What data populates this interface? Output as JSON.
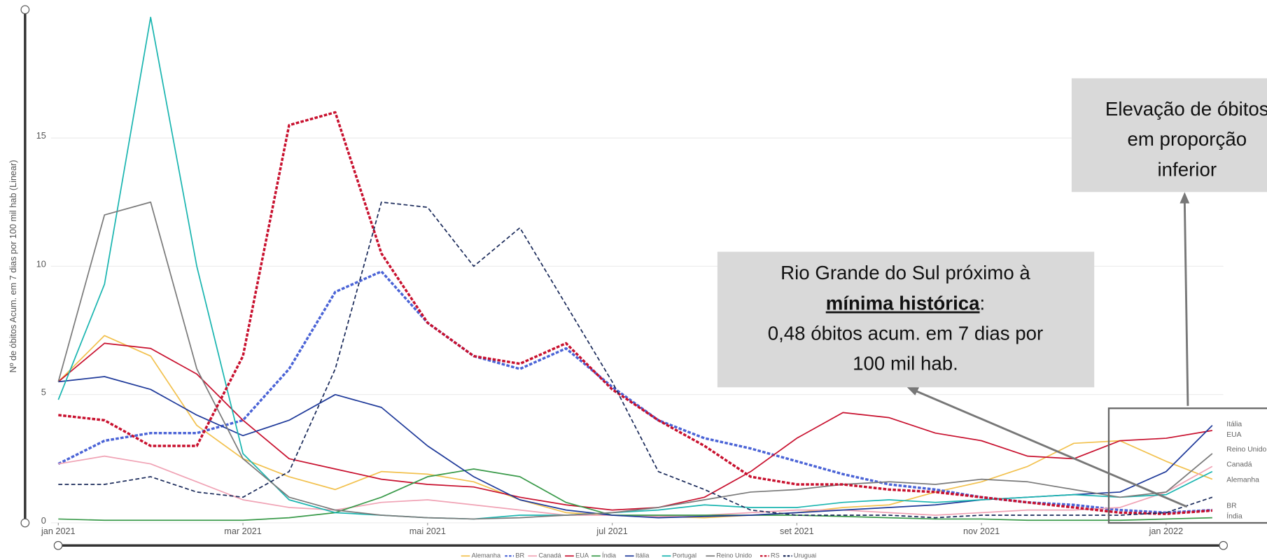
{
  "chart_data": {
    "type": "line",
    "y_label": "Nº de óbitos Acum. em 7 dias por 100 mil hab (Linear)",
    "xlim": [
      -0.36,
      12.62
    ],
    "xticks": [
      {
        "value": 0,
        "label": "jan 2021"
      },
      {
        "value": 2,
        "label": "mar 2021"
      },
      {
        "value": 4,
        "label": "mai 2021"
      },
      {
        "value": 6,
        "label": "jul 2021"
      },
      {
        "value": 8,
        "label": "set 2021"
      },
      {
        "value": 10,
        "label": "nov 2021"
      },
      {
        "value": 12,
        "label": "jan 2022"
      }
    ],
    "ylim": [
      0,
      20
    ],
    "yticks": [
      0,
      5,
      10,
      15
    ],
    "grid": true,
    "legend": "bottom",
    "x": [
      0,
      0.5,
      1,
      1.5,
      2,
      2.5,
      3,
      3.5,
      4,
      4.5,
      5,
      5.5,
      6,
      6.5,
      7,
      7.5,
      8,
      8.5,
      9,
      9.5,
      10,
      10.5,
      11,
      11.5,
      12,
      12.5
    ],
    "series": [
      {
        "name": "Alemanha",
        "color": "#f2c14e",
        "dashed": false,
        "width": 1.5,
        "values": [
          5.5,
          7.3,
          6.5,
          3.8,
          2.5,
          1.8,
          1.3,
          2.0,
          1.9,
          1.6,
          0.9,
          0.4,
          0.3,
          0.25,
          0.2,
          0.3,
          0.4,
          0.6,
          0.7,
          1.2,
          1.6,
          2.2,
          3.1,
          3.2,
          2.4,
          1.7
        ]
      },
      {
        "name": "BR",
        "color": "#4a63d6",
        "dashed": true,
        "width": 3,
        "values": [
          2.3,
          3.2,
          3.5,
          3.5,
          4.0,
          6.0,
          9.0,
          9.8,
          7.8,
          6.5,
          6.0,
          6.8,
          5.3,
          4.0,
          3.3,
          2.9,
          2.4,
          1.9,
          1.5,
          1.3,
          1.0,
          0.8,
          0.7,
          0.5,
          0.4,
          0.5
        ]
      },
      {
        "name": "Canadá",
        "color": "#f0a3b5",
        "dashed": false,
        "width": 1.5,
        "values": [
          2.3,
          2.6,
          2.3,
          1.6,
          0.9,
          0.6,
          0.5,
          0.8,
          0.9,
          0.7,
          0.5,
          0.3,
          0.3,
          0.25,
          0.3,
          0.4,
          0.5,
          0.5,
          0.4,
          0.3,
          0.4,
          0.5,
          0.5,
          0.6,
          1.2,
          2.2
        ]
      },
      {
        "name": "EUA",
        "color": "#c8102e",
        "dashed": false,
        "width": 1.5,
        "values": [
          5.5,
          7.0,
          6.8,
          5.8,
          4.0,
          2.5,
          2.1,
          1.7,
          1.5,
          1.4,
          1.0,
          0.7,
          0.5,
          0.6,
          1.0,
          2.0,
          3.3,
          4.3,
          4.1,
          3.5,
          3.2,
          2.6,
          2.5,
          3.2,
          3.3,
          3.6
        ]
      },
      {
        "name": "Índia",
        "color": "#3a9a4a",
        "dashed": false,
        "width": 1.5,
        "values": [
          0.15,
          0.1,
          0.1,
          0.1,
          0.1,
          0.2,
          0.4,
          1.0,
          1.8,
          2.1,
          1.8,
          0.8,
          0.3,
          0.3,
          0.3,
          0.3,
          0.3,
          0.25,
          0.2,
          0.15,
          0.15,
          0.1,
          0.1,
          0.1,
          0.15,
          0.2
        ]
      },
      {
        "name": "Itália",
        "color": "#1f3a9a",
        "dashed": false,
        "width": 1.5,
        "values": [
          5.5,
          5.7,
          5.2,
          4.2,
          3.4,
          4.0,
          5.0,
          4.5,
          3.0,
          1.8,
          0.9,
          0.5,
          0.3,
          0.2,
          0.25,
          0.3,
          0.4,
          0.5,
          0.6,
          0.7,
          0.9,
          1.0,
          1.1,
          1.2,
          2.0,
          3.8
        ]
      },
      {
        "name": "Portugal",
        "color": "#1ab5b0",
        "dashed": false,
        "width": 1.5,
        "values": [
          4.8,
          9.3,
          19.7,
          10.0,
          2.7,
          0.9,
          0.4,
          0.3,
          0.2,
          0.15,
          0.3,
          0.3,
          0.4,
          0.5,
          0.7,
          0.6,
          0.6,
          0.8,
          0.9,
          0.8,
          0.9,
          1.0,
          1.1,
          1.0,
          1.1,
          2.0
        ]
      },
      {
        "name": "Reino Unido",
        "color": "#7a7a7a",
        "dashed": false,
        "width": 1.5,
        "values": [
          5.5,
          12.0,
          12.5,
          6.0,
          2.5,
          1.0,
          0.5,
          0.3,
          0.2,
          0.15,
          0.2,
          0.3,
          0.4,
          0.6,
          0.9,
          1.2,
          1.3,
          1.5,
          1.6,
          1.5,
          1.7,
          1.6,
          1.3,
          1.0,
          1.2,
          2.7
        ]
      },
      {
        "name": "RS",
        "color": "#c8102e",
        "dashed": true,
        "width": 3,
        "values": [
          4.2,
          4.0,
          3.0,
          3.0,
          6.5,
          15.5,
          16.0,
          10.5,
          7.8,
          6.5,
          6.2,
          7.0,
          5.2,
          4.0,
          3.0,
          1.8,
          1.5,
          1.5,
          1.3,
          1.2,
          1.0,
          0.8,
          0.6,
          0.4,
          0.35,
          0.48
        ]
      },
      {
        "name": "Uruguai",
        "color": "#1a2a5a",
        "dashed": true,
        "width": 1.5,
        "values": [
          1.5,
          1.5,
          1.8,
          1.2,
          1.0,
          2.0,
          6.0,
          12.5,
          12.3,
          10.0,
          11.5,
          8.5,
          5.5,
          2.0,
          1.3,
          0.5,
          0.3,
          0.3,
          0.3,
          0.2,
          0.3,
          0.3,
          0.3,
          0.3,
          0.4,
          1.0
        ]
      }
    ],
    "annotations": [
      {
        "lines": [
          "Rio Grande do Sul próximo à"
        ],
        "emphasis": "mínima histórica",
        "after": ":",
        "more": [
          "0,48 óbitos acum. em 7 dias por",
          "100 mil hab."
        ]
      },
      {
        "lines": [
          "Elevação de óbitos",
          "em proporção",
          "inferior"
        ]
      }
    ]
  }
}
